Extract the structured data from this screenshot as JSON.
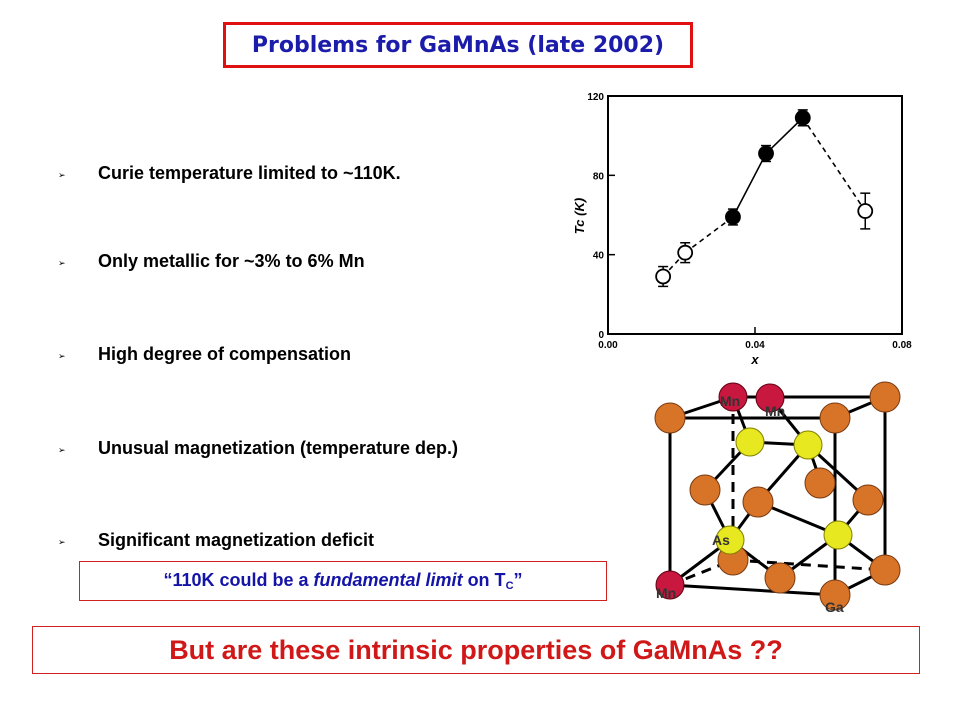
{
  "title": "Problems for GaMnAs (late 2002)",
  "bullets": [
    {
      "marker": "➢",
      "text": "Curie temperature limited to ~110K."
    },
    {
      "marker": "➢",
      "text": "Only metallic for ~3% to 6% Mn"
    },
    {
      "marker": "➢",
      "text": "High degree of compensation"
    },
    {
      "marker": "➢",
      "text": "Unusual magnetization (temperature dep.)"
    },
    {
      "marker": "➢",
      "text": "Significant magnetization deficit"
    }
  ],
  "quote": {
    "open": "“110K could be a ",
    "emph": "fundamental limit",
    "mid": " on T",
    "sub": "C",
    "close": "”"
  },
  "bottom_statement": "But are these intrinsic properties of GaMnAs ??",
  "chart_data": {
    "type": "scatter",
    "xlabel": "x",
    "ylabel": "Tc (K)",
    "xlim": [
      0.0,
      0.08
    ],
    "ylim": [
      0,
      120
    ],
    "xticks": [
      "0.00",
      "0.04",
      "0.08"
    ],
    "yticks": [
      "0",
      "40",
      "80",
      "120"
    ],
    "series": [
      {
        "marker": "open",
        "line": "dashed",
        "points": [
          [
            0.015,
            29
          ],
          [
            0.021,
            41
          ],
          [
            0.034,
            59
          ],
          [
            0.043,
            91
          ],
          [
            0.053,
            109
          ],
          [
            0.07,
            62
          ]
        ]
      }
    ],
    "filled_points": [
      [
        0.034,
        59
      ],
      [
        0.043,
        91
      ],
      [
        0.053,
        109
      ]
    ],
    "open_points": [
      [
        0.015,
        29
      ],
      [
        0.021,
        41
      ],
      [
        0.07,
        62
      ]
    ],
    "error_bars": [
      5,
      5,
      4,
      4,
      4,
      9
    ]
  },
  "crystal": {
    "labels": {
      "mn1": "Mn",
      "mn2": "Mn",
      "mn3": "Mn",
      "as": "As",
      "ga": "Ga"
    },
    "colors": {
      "ga": "#d87428",
      "mn": "#c81840",
      "as": "#e8e820",
      "edge": "#000000"
    }
  }
}
